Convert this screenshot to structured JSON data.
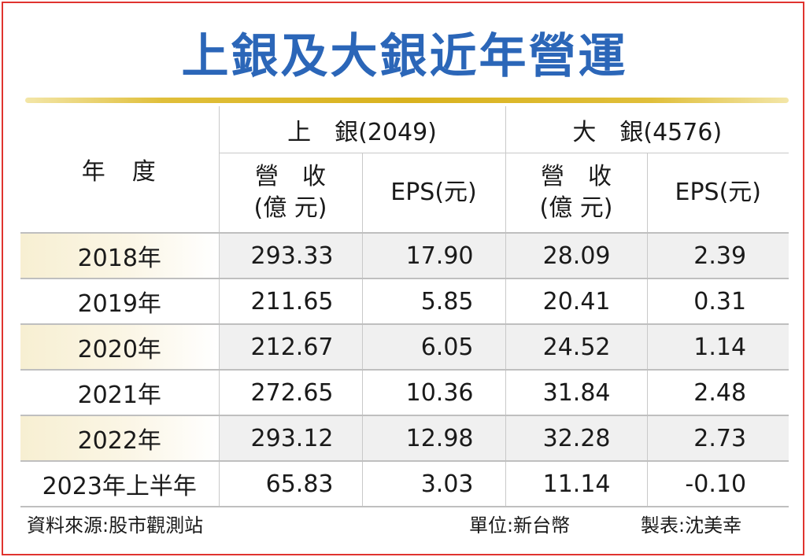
{
  "title": "上銀及大銀近年營運",
  "chart_data": {
    "type": "table",
    "title": "上銀及大銀近年營運",
    "header": {
      "year": "年　度",
      "company_a": "上　銀(2049)",
      "company_b": "大　銀(4576)",
      "revenue_line1": "營　收",
      "revenue_line2": "(億 元)",
      "eps": "EPS(元)"
    },
    "rows": [
      {
        "year": "2018年",
        "a_revenue": "293.33",
        "a_eps": "17.90",
        "b_revenue": "28.09",
        "b_eps": "2.39"
      },
      {
        "year": "2019年",
        "a_revenue": "211.65",
        "a_eps": "5.85",
        "b_revenue": "20.41",
        "b_eps": "0.31"
      },
      {
        "year": "2020年",
        "a_revenue": "212.67",
        "a_eps": "6.05",
        "b_revenue": "24.52",
        "b_eps": "1.14"
      },
      {
        "year": "2021年",
        "a_revenue": "272.65",
        "a_eps": "10.36",
        "b_revenue": "31.84",
        "b_eps": "2.48"
      },
      {
        "year": "2022年",
        "a_revenue": "293.12",
        "a_eps": "12.98",
        "b_revenue": "32.28",
        "b_eps": "2.73"
      },
      {
        "year": "2023年上半年",
        "a_revenue": "65.83",
        "a_eps": "3.03",
        "b_revenue": "11.14",
        "b_eps": "-0.10"
      }
    ]
  },
  "footer": {
    "source": "資料來源:股市觀測站",
    "unit": "單位:新台幣",
    "maker": "製表:沈美幸"
  },
  "colors": {
    "title": "#2b66b8",
    "border": "#e0342f",
    "gold_rule": "#d9b21e",
    "row_shade": "#f0f0f0"
  }
}
